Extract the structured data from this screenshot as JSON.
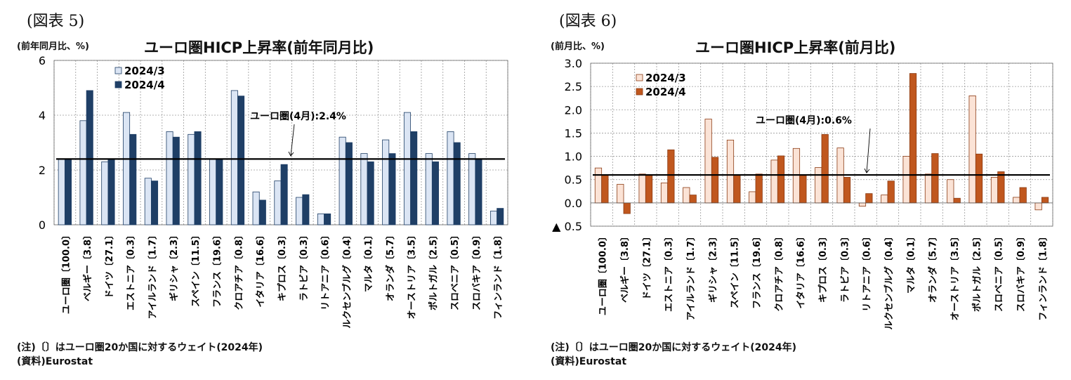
{
  "panels": [
    {
      "figure_label": "(図表 5)",
      "unit_label": "(前年同月比、%)",
      "note": "(注)〔〕はユーロ圏20か国に対するウェイト(2024年)",
      "source": "(資料)Eurostat"
    },
    {
      "figure_label": "(図表 6)",
      "unit_label": "(前月比、%)",
      "note": "(注)〔〕はユーロ圏20か国に対するウェイト(2024年)",
      "source": "(資料)Eurostat"
    }
  ],
  "chart_data": [
    {
      "type": "bar",
      "title": "ユーロ圏HICP上昇率(前年同月比)",
      "ylabel": "(前年同月比、%)",
      "ylim": [
        0,
        6
      ],
      "yticks": [
        0,
        2,
        4,
        6
      ],
      "ytick_labels": [
        "0",
        "2",
        "4",
        "6"
      ],
      "grid": true,
      "legend_position": "top-left",
      "colors": {
        "2024/3": "#dbe5f4",
        "2024/4": "#1f3f66",
        "border": "#1f3f66"
      },
      "categories": [
        "ユーロ圏〔100.0〕",
        "ベルギー〔3.8〕",
        "ドイツ〔27.1〕",
        "エストニア〔0.3〕",
        "アイルランド〔1.7〕",
        "ギリシャ〔2.3〕",
        "スペイン〔11.5〕",
        "フランス〔19.6〕",
        "クロアチア〔0.8〕",
        "イタリア〔16.6〕",
        "キプロス〔0.3〕",
        "ラトビア〔0.3〕",
        "リトアニア〔0.6〕",
        "ルクセンブルグ〔0.4〕",
        "マルタ〔0.1〕",
        "オランダ〔5.7〕",
        "オーストリア〔3.5〕",
        "ポルトガル〔2.5〕",
        "スロベニア〔0.5〕",
        "スロバキア〔0.9〕",
        "フィンランド〔1.8〕"
      ],
      "series": [
        {
          "name": "2024/3",
          "values": [
            2.4,
            3.8,
            2.3,
            4.1,
            1.7,
            3.4,
            3.3,
            2.4,
            4.9,
            1.2,
            1.6,
            1.0,
            0.4,
            3.2,
            2.6,
            3.1,
            4.1,
            2.6,
            3.4,
            2.6,
            0.5
          ]
        },
        {
          "name": "2024/4",
          "values": [
            2.4,
            4.9,
            2.4,
            3.3,
            1.6,
            3.2,
            3.4,
            2.4,
            4.7,
            0.9,
            2.2,
            1.1,
            0.4,
            3.0,
            2.3,
            2.6,
            3.4,
            2.3,
            3.0,
            2.4,
            0.6
          ]
        }
      ],
      "reference_line": {
        "value": 2.4,
        "label": "ユーロ圏(4月):2.4%"
      }
    },
    {
      "type": "bar",
      "title": "ユーロ圏HICP上昇率(前月比)",
      "ylabel": "(前月比、%)",
      "ylim": [
        -0.5,
        3.0
      ],
      "yticks": [
        3.0,
        2.5,
        2.0,
        1.5,
        1.0,
        0.5,
        0.0,
        -0.5
      ],
      "ytick_labels": [
        "3.0",
        "2.5",
        "2.0",
        "1.5",
        "1.0",
        "0.5",
        "0.0",
        "▲ 0.5"
      ],
      "grid": true,
      "legend_position": "top-left",
      "colors": {
        "2024/3": "#fbe3d6",
        "2024/4": "#c0571e",
        "border": "#8b3a12"
      },
      "categories": [
        "ユーロ圏〔100.0〕",
        "ベルギー〔3.8〕",
        "ドイツ〔27.1〕",
        "エストニア〔0.3〕",
        "アイルランド〔1.7〕",
        "ギリシャ〔2.3〕",
        "スペイン〔11.5〕",
        "フランス〔19.6〕",
        "クロアチア〔0.8〕",
        "イタリア〔16.6〕",
        "キプロス〔0.3〕",
        "ラトビア〔0.3〕",
        "リトアニア〔0.6〕",
        "ルクセンブルグ〔0.4〕",
        "マルタ〔0.1〕",
        "オランダ〔5.7〕",
        "オーストリア〔3.5〕",
        "ポルトガル〔2.5〕",
        "スロベニア〔0.5〕",
        "スロバキア〔0.9〕",
        "フィンランド〔1.8〕"
      ],
      "series": [
        {
          "name": "2024/3",
          "values": [
            0.75,
            0.4,
            0.62,
            0.43,
            0.33,
            1.8,
            1.35,
            0.24,
            0.92,
            1.17,
            0.76,
            1.18,
            -0.07,
            0.17,
            1.0,
            0.62,
            0.5,
            2.3,
            0.55,
            0.12,
            -0.15
          ]
        },
        {
          "name": "2024/4",
          "values": [
            0.6,
            -0.23,
            0.6,
            1.14,
            0.17,
            0.98,
            0.6,
            0.62,
            1.01,
            0.6,
            1.47,
            0.55,
            0.2,
            0.47,
            2.78,
            1.06,
            0.1,
            1.05,
            0.67,
            0.33,
            0.12
          ]
        }
      ],
      "reference_line": {
        "value": 0.6,
        "label": "ユーロ圏(4月):0.6%"
      }
    }
  ]
}
